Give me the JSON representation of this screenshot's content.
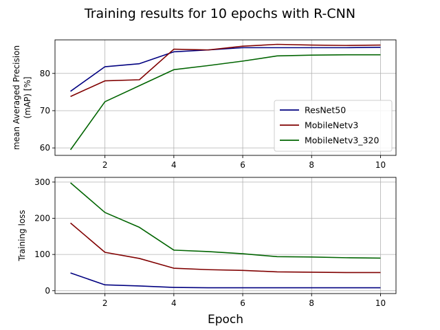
{
  "figure": {
    "title": "Training results for 10 epochs with R-CNN",
    "xlabel": "Epoch"
  },
  "chart_data": [
    {
      "type": "line",
      "title": "",
      "xlabel": "",
      "ylabel": "mean Averaged Precision\n(mAP) [%]",
      "xlim": [
        0.55,
        10.45
      ],
      "ylim": [
        58,
        89
      ],
      "xticks": [
        2,
        4,
        6,
        8,
        10
      ],
      "yticks": [
        60,
        70,
        80
      ],
      "grid": true,
      "legend": "lower-right",
      "x": [
        1,
        2,
        3,
        4,
        5,
        6,
        7,
        8,
        9,
        10
      ],
      "series": [
        {
          "name": "ResNet50",
          "color": "#000080",
          "values": [
            75.2,
            81.8,
            82.6,
            85.8,
            86.3,
            86.9,
            86.9,
            86.9,
            86.9,
            87.0
          ]
        },
        {
          "name": "MobileNetv3",
          "color": "#800000",
          "values": [
            73.8,
            78.0,
            78.3,
            86.5,
            86.3,
            87.3,
            87.8,
            87.6,
            87.5,
            87.6
          ]
        },
        {
          "name": "MobileNetv3_320",
          "color": "#006400",
          "values": [
            59.5,
            72.4,
            76.7,
            81.0,
            82.1,
            83.3,
            84.7,
            84.9,
            85.0,
            85.0
          ]
        }
      ]
    },
    {
      "type": "line",
      "title": "",
      "xlabel": "",
      "ylabel": "Training loss",
      "xlim": [
        0.55,
        10.45
      ],
      "ylim": [
        -8,
        313
      ],
      "xticks": [
        2,
        4,
        6,
        8,
        10
      ],
      "yticks": [
        0,
        100,
        200,
        300
      ],
      "grid": true,
      "legend": "",
      "x": [
        1,
        2,
        3,
        4,
        5,
        6,
        7,
        8,
        9,
        10
      ],
      "series": [
        {
          "name": "ResNet50",
          "color": "#000080",
          "values": [
            49,
            16,
            13,
            9,
            8,
            8,
            8,
            8,
            8,
            8
          ]
        },
        {
          "name": "MobileNetv3",
          "color": "#800000",
          "values": [
            187,
            106,
            89,
            62,
            58,
            56,
            52,
            51,
            50,
            50
          ]
        },
        {
          "name": "MobileNetv3_320",
          "color": "#006400",
          "values": [
            298,
            216,
            175,
            112,
            108,
            102,
            94,
            93,
            91,
            90
          ]
        }
      ]
    }
  ]
}
